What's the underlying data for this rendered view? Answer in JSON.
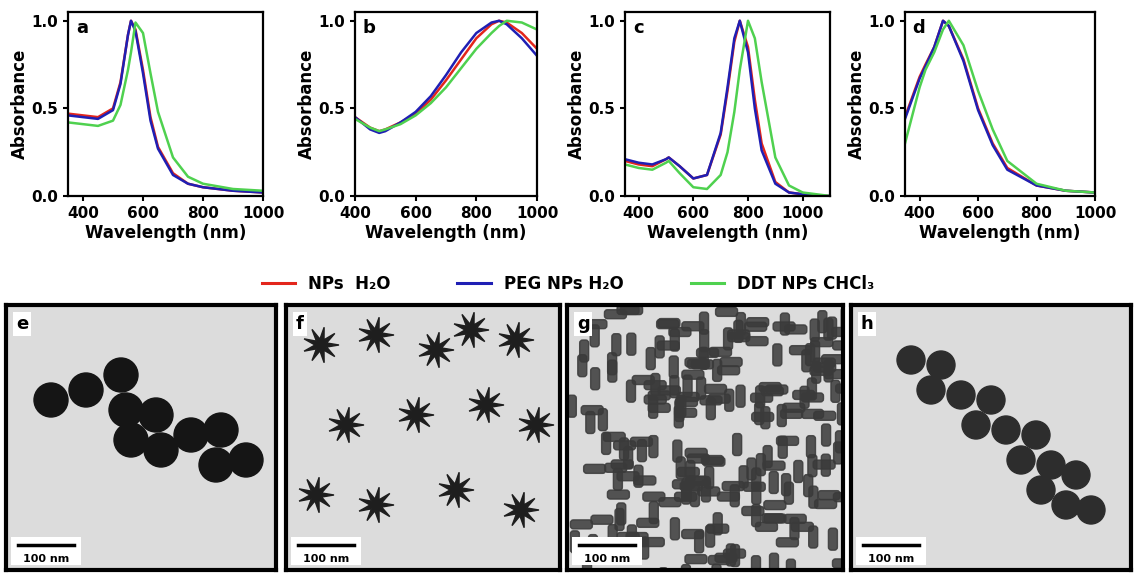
{
  "chart_data": [
    {
      "type": "line",
      "title": "a",
      "x_label": "Wavelength (nm)",
      "y_label": "Absorbance",
      "x": [
        350,
        400,
        450,
        500,
        525,
        550,
        560,
        575,
        600,
        625,
        650,
        700,
        750,
        800,
        900,
        1000
      ],
      "xlim": [
        350,
        1000
      ],
      "xticks": [
        400,
        600,
        800,
        1000
      ],
      "ylim": [
        0,
        1.05
      ],
      "yticks": [
        {
          "value": 0,
          "label": "0.0"
        },
        {
          "value": 0.5,
          "label": "0.5"
        },
        {
          "value": 1,
          "label": "1.0"
        }
      ],
      "series": [
        {
          "name": "NPs  H₂O",
          "color": "#e3261c",
          "values": [
            0.47,
            0.46,
            0.45,
            0.5,
            0.65,
            0.92,
            1.0,
            0.95,
            0.72,
            0.45,
            0.28,
            0.13,
            0.07,
            0.05,
            0.03,
            0.02
          ]
        },
        {
          "name": "PEG NPs H₂O",
          "color": "#1f1fb4",
          "values": [
            0.46,
            0.45,
            0.44,
            0.49,
            0.64,
            0.92,
            1.0,
            0.94,
            0.7,
            0.43,
            0.27,
            0.12,
            0.07,
            0.05,
            0.03,
            0.02
          ]
        },
        {
          "name": "DDT NPs CHCl₃",
          "color": "#4fd14f",
          "values": [
            0.42,
            0.41,
            0.4,
            0.43,
            0.52,
            0.72,
            0.82,
            0.99,
            0.93,
            0.7,
            0.48,
            0.22,
            0.11,
            0.07,
            0.04,
            0.03
          ]
        }
      ]
    },
    {
      "type": "line",
      "title": "b",
      "x_label": "Wavelength (nm)",
      "y_label": "Absorbance",
      "x": [
        400,
        450,
        480,
        500,
        550,
        600,
        650,
        700,
        750,
        800,
        850,
        875,
        900,
        950,
        1000
      ],
      "xlim": [
        400,
        1000
      ],
      "xticks": [
        400,
        600,
        800,
        1000
      ],
      "ylim": [
        0,
        1.05
      ],
      "yticks": [
        {
          "value": 0,
          "label": "0.0"
        },
        {
          "value": 0.5,
          "label": "0.5"
        },
        {
          "value": 1,
          "label": "1.0"
        }
      ],
      "series": [
        {
          "name": "NPs  H₂O",
          "color": "#e3261c",
          "values": [
            0.45,
            0.39,
            0.37,
            0.38,
            0.42,
            0.47,
            0.55,
            0.66,
            0.78,
            0.9,
            0.98,
            1.0,
            0.99,
            0.93,
            0.84
          ]
        },
        {
          "name": "PEG NPs H₂O",
          "color": "#1f1fb4",
          "values": [
            0.45,
            0.38,
            0.36,
            0.37,
            0.42,
            0.48,
            0.57,
            0.69,
            0.82,
            0.93,
            0.99,
            1.0,
            0.98,
            0.9,
            0.8
          ]
        },
        {
          "name": "DDT NPs CHCl₃",
          "color": "#4fd14f",
          "values": [
            0.44,
            0.39,
            0.37,
            0.38,
            0.41,
            0.46,
            0.53,
            0.62,
            0.73,
            0.84,
            0.93,
            0.97,
            1.0,
            0.99,
            0.95
          ]
        }
      ]
    },
    {
      "type": "line",
      "title": "c",
      "x_label": "Wavelength (nm)",
      "y_label": "Absorbance",
      "x": [
        350,
        400,
        450,
        500,
        510,
        550,
        600,
        650,
        700,
        725,
        750,
        770,
        800,
        825,
        850,
        900,
        950,
        1000,
        1050,
        1100
      ],
      "xlim": [
        350,
        1100
      ],
      "xticks": [
        400,
        600,
        800,
        1000
      ],
      "ylim": [
        0,
        1.05
      ],
      "yticks": [
        {
          "value": 0,
          "label": "0.0"
        },
        {
          "value": 0.5,
          "label": "0.5"
        },
        {
          "value": 1,
          "label": "1.0"
        }
      ],
      "series": [
        {
          "name": "NPs  H₂O",
          "color": "#e3261c",
          "values": [
            0.2,
            0.18,
            0.17,
            0.21,
            0.22,
            0.17,
            0.1,
            0.12,
            0.35,
            0.6,
            0.88,
            1.0,
            0.85,
            0.55,
            0.3,
            0.08,
            0.02,
            0.01,
            0,
            0
          ]
        },
        {
          "name": "PEG NPs H₂O",
          "color": "#1f1fb4",
          "values": [
            0.21,
            0.19,
            0.18,
            0.21,
            0.22,
            0.17,
            0.1,
            0.12,
            0.36,
            0.62,
            0.9,
            1.0,
            0.82,
            0.5,
            0.26,
            0.07,
            0.02,
            0.01,
            0,
            0
          ]
        },
        {
          "name": "DDT NPs CHCl₃",
          "color": "#4fd14f",
          "values": [
            0.18,
            0.16,
            0.15,
            0.19,
            0.2,
            0.13,
            0.05,
            0.04,
            0.12,
            0.25,
            0.48,
            0.72,
            1.0,
            0.9,
            0.65,
            0.22,
            0.06,
            0.02,
            0.01,
            0
          ]
        }
      ]
    },
    {
      "type": "line",
      "title": "d",
      "x_label": "Wavelength (nm)",
      "y_label": "Absorbance",
      "x": [
        350,
        400,
        420,
        450,
        480,
        500,
        550,
        600,
        650,
        700,
        800,
        900,
        1000
      ],
      "xlim": [
        350,
        1000
      ],
      "xticks": [
        400,
        600,
        800,
        1000
      ],
      "ylim": [
        0,
        1.05
      ],
      "yticks": [
        {
          "value": 0,
          "label": "0.0"
        },
        {
          "value": 0.5,
          "label": "0.5"
        },
        {
          "value": 1,
          "label": "1.0"
        }
      ],
      "series": [
        {
          "name": "NPs  H₂O",
          "color": "#e3261c",
          "values": [
            0.45,
            0.68,
            0.75,
            0.85,
            1.0,
            0.97,
            0.78,
            0.5,
            0.3,
            0.16,
            0.06,
            0.03,
            0.02
          ]
        },
        {
          "name": "PEG NPs H₂O",
          "color": "#1f1fb4",
          "values": [
            0.44,
            0.67,
            0.74,
            0.85,
            1.0,
            0.97,
            0.77,
            0.49,
            0.29,
            0.15,
            0.06,
            0.03,
            0.02
          ]
        },
        {
          "name": "DDT NPs CHCl₃",
          "color": "#4fd14f",
          "values": [
            0.3,
            0.62,
            0.72,
            0.82,
            0.95,
            1.0,
            0.86,
            0.6,
            0.38,
            0.2,
            0.07,
            0.03,
            0.02
          ]
        }
      ]
    }
  ],
  "images": [
    {
      "label": "e",
      "scale_bar": "100 nm"
    },
    {
      "label": "f",
      "scale_bar": "100 nm"
    },
    {
      "label": "g",
      "scale_bar": "100 nm"
    },
    {
      "label": "h",
      "scale_bar": "100 nm"
    }
  ]
}
